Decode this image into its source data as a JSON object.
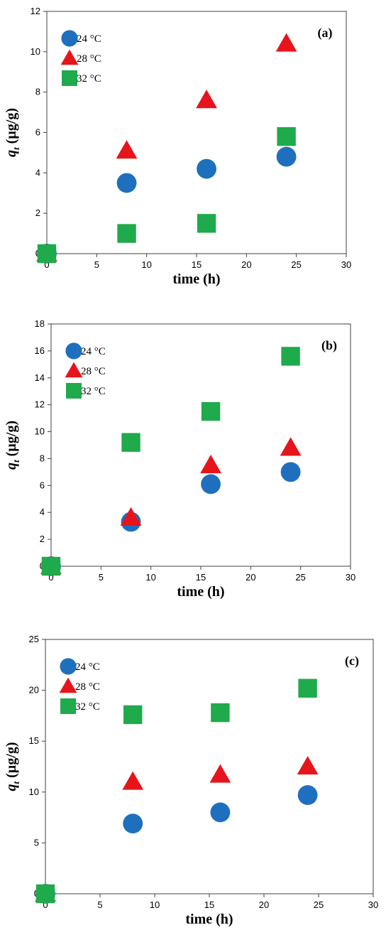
{
  "colors": {
    "series_24": "#1f6fbf",
    "series_28": "#e8141b",
    "series_32": "#1faa4b",
    "axis": "#404040"
  },
  "chart_data": [
    {
      "type": "scatter",
      "panel_label": "(a)",
      "xlabel": "time (h)",
      "ylabel_main": "q",
      "ylabel_sub": "t",
      "ylabel_unit": " (µg/g)",
      "xlim": [
        0,
        30
      ],
      "ylim": [
        0,
        12
      ],
      "xticks": [
        0,
        5,
        10,
        15,
        20,
        25,
        30
      ],
      "yticks": [
        0,
        2,
        4,
        6,
        8,
        10,
        12
      ],
      "legend_position": "top-left",
      "grid": false,
      "series": [
        {
          "name": "24 °C",
          "marker": "circle",
          "color_key": "series_24",
          "x": [
            0,
            8,
            16,
            24
          ],
          "y": [
            0,
            3.5,
            4.2,
            4.8
          ]
        },
        {
          "name": "28 °C",
          "marker": "triangle",
          "color_key": "series_28",
          "x": [
            0,
            8,
            16,
            24
          ],
          "y": [
            0,
            5.1,
            7.6,
            10.4
          ]
        },
        {
          "name": "32 °C",
          "marker": "square",
          "color_key": "series_32",
          "x": [
            0,
            8,
            16,
            24
          ],
          "y": [
            0,
            1.0,
            1.5,
            5.8
          ]
        }
      ]
    },
    {
      "type": "scatter",
      "panel_label": "(b)",
      "xlabel": "time (h)",
      "ylabel_main": "q",
      "ylabel_sub": "t",
      "ylabel_unit": " (µg/g)",
      "xlim": [
        0,
        30
      ],
      "ylim": [
        0,
        18
      ],
      "xticks": [
        0,
        5,
        10,
        15,
        20,
        25,
        30
      ],
      "yticks": [
        0,
        2,
        4,
        6,
        8,
        10,
        12,
        14,
        16,
        18
      ],
      "legend_position": "top-left",
      "grid": false,
      "series": [
        {
          "name": "24 °C",
          "marker": "circle",
          "color_key": "series_24",
          "x": [
            0,
            8,
            16,
            24
          ],
          "y": [
            0,
            3.3,
            6.1,
            7.0
          ]
        },
        {
          "name": "28 °C",
          "marker": "triangle",
          "color_key": "series_28",
          "x": [
            0,
            8,
            16,
            24
          ],
          "y": [
            0,
            3.6,
            7.5,
            8.8
          ]
        },
        {
          "name": "32 °C",
          "marker": "square",
          "color_key": "series_32",
          "x": [
            0,
            8,
            16,
            24
          ],
          "y": [
            0,
            9.2,
            11.5,
            15.6
          ]
        }
      ]
    },
    {
      "type": "scatter",
      "panel_label": "(c)",
      "xlabel": "time (h)",
      "ylabel_main": "q",
      "ylabel_sub": "t",
      "ylabel_unit": " (µg/g)",
      "xlim": [
        0,
        30
      ],
      "ylim": [
        0,
        25
      ],
      "xticks": [
        0,
        5,
        10,
        15,
        20,
        25,
        30
      ],
      "yticks": [
        0,
        5,
        10,
        15,
        20,
        25
      ],
      "legend_position": "top-left",
      "grid": false,
      "series": [
        {
          "name": "24 °C",
          "marker": "circle",
          "color_key": "series_24",
          "x": [
            0,
            8,
            16,
            24
          ],
          "y": [
            0,
            6.9,
            8.0,
            9.7
          ]
        },
        {
          "name": "28 °C",
          "marker": "triangle",
          "color_key": "series_28",
          "x": [
            0,
            8,
            16,
            24
          ],
          "y": [
            0,
            11.0,
            11.7,
            12.5
          ]
        },
        {
          "name": "32 °C",
          "marker": "square",
          "color_key": "series_32",
          "x": [
            0,
            8,
            16,
            24
          ],
          "y": [
            0,
            17.6,
            17.8,
            20.2
          ]
        }
      ]
    }
  ]
}
